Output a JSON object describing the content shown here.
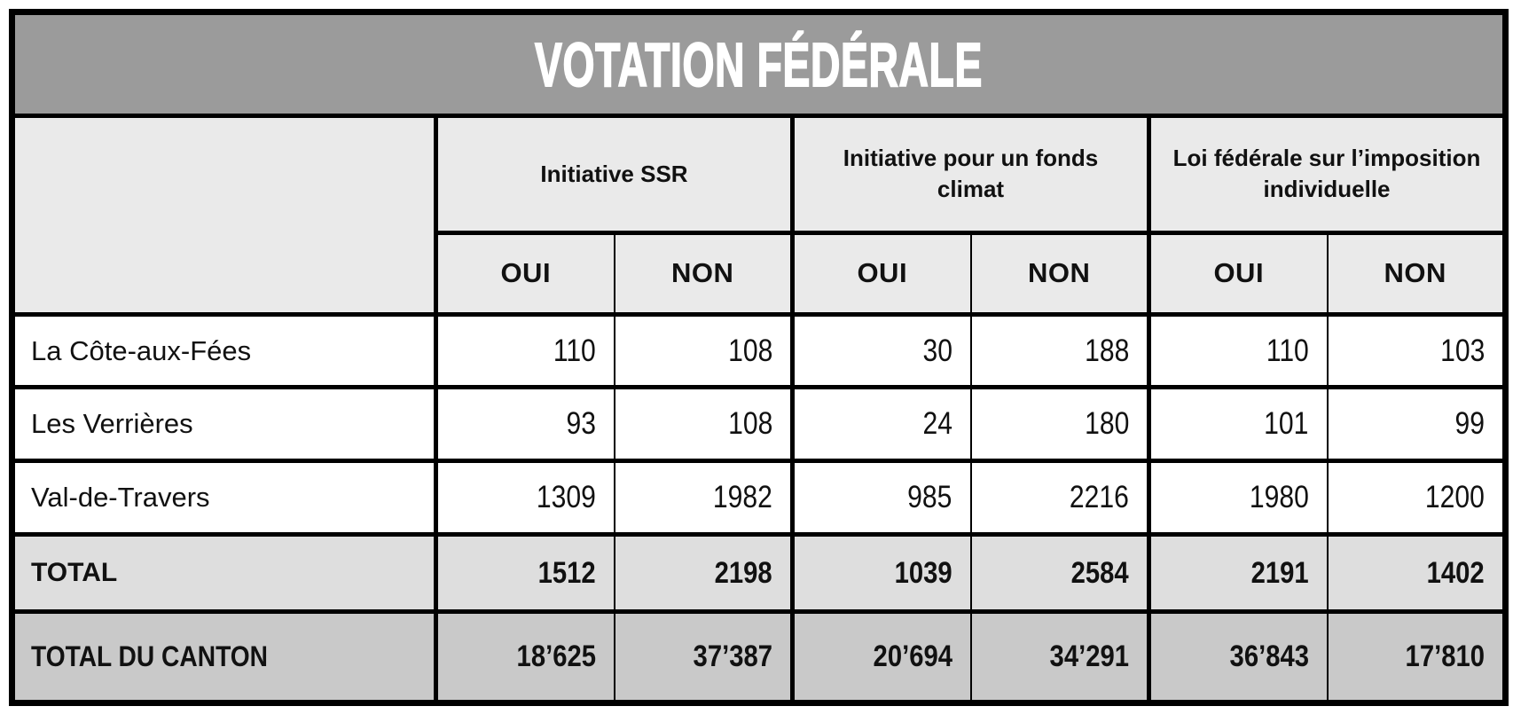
{
  "title": "VOTATION FÉDÉRALE",
  "colors": {
    "title_bar_bg": "#9B9B9B",
    "title_text": "#FFFFFF",
    "header_bg": "#EAEAEA",
    "data_row_bg": "#FFFFFF",
    "total_row_bg": "#DEDEDE",
    "canton_row_bg": "#C9C9C9",
    "border": "#000000",
    "text": "#111111"
  },
  "table": {
    "corner_label": "",
    "groups": [
      {
        "label": "Initiative SSR"
      },
      {
        "label": "Initiative pour un fonds climat"
      },
      {
        "label": "Loi fédérale sur l’imposition individuelle"
      }
    ],
    "sub_headers": [
      "OUI",
      "NON",
      "OUI",
      "NON",
      "OUI",
      "NON"
    ],
    "rows": [
      {
        "label": "La Côte-aux-Fées",
        "values": [
          "110",
          "108",
          "30",
          "188",
          "110",
          "103"
        ]
      },
      {
        "label": "Les Verrières",
        "values": [
          "93",
          "108",
          "24",
          "180",
          "101",
          "99"
        ]
      },
      {
        "label": "Val-de-Travers",
        "values": [
          "1309",
          "1982",
          "985",
          "2216",
          "1980",
          "1200"
        ]
      }
    ],
    "total_row": {
      "label": "TOTAL",
      "values": [
        "1512",
        "2198",
        "1039",
        "2584",
        "2191",
        "1402"
      ]
    },
    "canton_row": {
      "label": "TOTAL DU CANTON",
      "values": [
        "18’625",
        "37’387",
        "20’694",
        "34’291",
        "36’843",
        "17’810"
      ]
    }
  }
}
